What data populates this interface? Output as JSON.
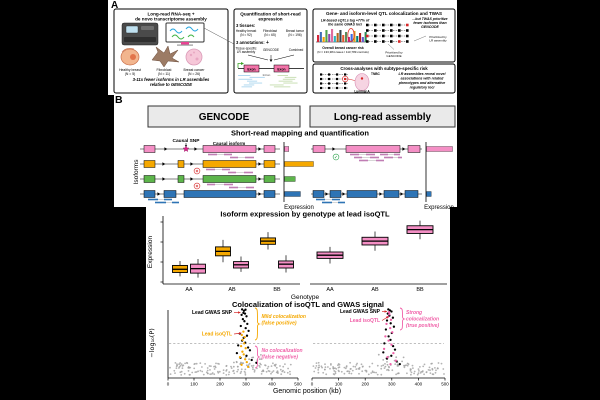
{
  "panel_a": {
    "label": "A",
    "box1": {
      "title1": "Long-read RNA-seq +",
      "title2": "de novo transcriptome assembly",
      "tissues": [
        {
          "name": "Healthy breast",
          "n": "(N = 5)"
        },
        {
          "name": "Fibroblast",
          "n": "(N = 11)"
        },
        {
          "name": "Breast cancer",
          "n": "(N = 26)"
        }
      ],
      "note1": "3-11x fewer isoforms in LR assemblies",
      "note2": "relative to GENCODE"
    },
    "box2": {
      "title1": "Quantification of short-read",
      "title2": "expression",
      "tissues_label": "3 tissues:",
      "tissues": [
        {
          "name": "Healthy breast",
          "n": "(N = 92)"
        },
        {
          "name": "Fibroblast",
          "n": "(N = 65)"
        },
        {
          "name": "Breast tumor",
          "n": "(N = 196)"
        }
      ],
      "annotations_label": "3 annotations:",
      "plus": "+",
      "ann1a": "Tissue-specific",
      "ann1b": "LR assembly",
      "ann2": "GENCODE",
      "ann3": "Combined",
      "exon": "Exon",
      "intron": "Intron"
    },
    "box3": {
      "title": "Gene- and isoform-level QTL colocalization and TWAS",
      "note_l1": "LR-based eQTLs tag +77% of",
      "note_l2": "the same GWAS loci",
      "risk1": "Overall breast cancer risk",
      "risk2": "(N = 133,384 cases / 113,789 controls)",
      "note_r1": "...but TWAS prioritize",
      "note_r2": "fewer isoforms than",
      "note_r3": "GENCODE",
      "leg_lr1": "Prioritized by",
      "leg_lr2": "LR assembly",
      "leg_gc1": "Prioritized by",
      "leg_gc2": "GENCODE",
      "ideogram": {
        "heights": [
          7,
          10,
          5,
          12,
          8,
          13,
          6,
          9,
          12,
          7,
          10,
          5,
          8,
          11,
          6,
          9,
          5,
          10
        ],
        "colors": [
          "#D62839",
          "#3B6EB5",
          "#F2A104",
          "#4FA34F",
          "#8E44AD",
          "#E06C9F",
          "#2BB3C0",
          "#B5651D",
          "#36454F",
          "#E4572E",
          "#5B8C5A",
          "#C71585",
          "#4169E1",
          "#DAA520",
          "#008080",
          "#B22222",
          "#6A5ACD",
          "#2E8B57"
        ]
      }
    },
    "box4": {
      "title": "Cross-analyses with subtype-specific risk",
      "tnbc": "TNBC",
      "luminal": "Luminal A",
      "note1": "LR assemblies reveal novel",
      "note2": "associations with related",
      "note3": "phenotypes and alternative",
      "note4": "regulatory loci"
    }
  },
  "panel_b": {
    "label": "B",
    "header_left": "GENCODE",
    "header_right": "Long-read assembly",
    "s1_title": "Short-read mapping and quantification",
    "causal_snp": "Causal SNP",
    "causal_isoform": "Causal isoform",
    "isoforms": "Isoforms",
    "expression": "Expression",
    "s2_title": "Isoform expression by genotype at lead isoQTL",
    "genotype": "Genotype",
    "s3_title": "Colocalization of isoQTL and GWAS signal",
    "neglog": "−log₁₀(P)",
    "xpos": "Genomic position (kb)",
    "ann": {
      "lead_gwas": "Lead GWAS SNP",
      "lead_isoqtl": "Lead isoQTL",
      "mild1": "Mild colocalization",
      "mild2": "(false positive)",
      "none1": "No colocalization",
      "none2": "(false negative)",
      "strong1": "Strong",
      "strong2": "colocalization",
      "strong3": "(true positive)"
    }
  },
  "colors": {
    "pink": "#F48FC5",
    "pink_dark": "#B4638F",
    "orange": "#F5A800",
    "green": "#5DB54B",
    "blue": "#2E74B5",
    "read_pink": "#C07DB4",
    "read_blue": "#2E74B5",
    "gray_pt": "#A0A0A0",
    "red": "#D62728",
    "pink_text": "#F060A8",
    "header_bg": "#EAEAEA",
    "light_blue_reads": "#A9D4EE",
    "light_green_reads": "#C4DCAE"
  },
  "chart_data": [
    {
      "type": "bar",
      "name": "short-read expression by isoform",
      "xlabel": "Expression",
      "panels": [
        {
          "annotation": "GENCODE",
          "categories": [
            "pink (causal) isoform",
            "orange isoform",
            "green isoform",
            "blue isoform"
          ],
          "colors": [
            "#F48FC5",
            "#F5A800",
            "#5DB54B",
            "#2E74B5"
          ],
          "values": [
            0.15,
            1.0,
            0.37,
            0.55
          ]
        },
        {
          "annotation": "Long-read assembly",
          "categories": [
            "pink (causal) isoform",
            "blue isoform"
          ],
          "colors": [
            "#F48FC5",
            "#2E74B5"
          ],
          "values": [
            1.0,
            0.18
          ]
        }
      ]
    },
    {
      "type": "boxplot",
      "title": "Isoform expression by genotype at lead isoQTL",
      "ylabel": "Expression",
      "xlabel": "Genotype",
      "genotypes": [
        "AA",
        "AB",
        "BB"
      ],
      "units": "arbitrary expression units (0-10)",
      "panels": [
        {
          "annotation": "GENCODE",
          "series": [
            {
              "name": "orange isoform",
              "color": "#F5A800",
              "boxes": [
                [
                  1.2,
                  1.8,
                  2.3,
                  2.9,
                  3.6
                ],
                [
                  3.4,
                  4.4,
                  5.1,
                  5.8,
                  6.9
                ],
                [
                  5.4,
                  6.2,
                  6.7,
                  7.2,
                  8.1
                ]
              ]
            },
            {
              "name": "pink isoform",
              "color": "#F48FC5",
              "boxes": [
                [
                  1.0,
                  1.7,
                  2.4,
                  3.1,
                  3.9
                ],
                [
                  1.9,
                  2.5,
                  3.0,
                  3.5,
                  4.3
                ],
                [
                  1.8,
                  2.5,
                  3.1,
                  3.6,
                  4.5
                ]
              ]
            }
          ]
        },
        {
          "annotation": "Long-read assembly",
          "series": [
            {
              "name": "pink isoform",
              "color": "#F48FC5",
              "boxes": [
                [
                  3.2,
                  4.0,
                  4.5,
                  5.0,
                  5.8
                ],
                [
                  5.2,
                  6.1,
                  6.7,
                  7.3,
                  8.2
                ],
                [
                  7.0,
                  7.9,
                  8.5,
                  9.1,
                  9.9
                ]
              ]
            }
          ]
        }
      ]
    },
    {
      "type": "scatter",
      "title": "Colocalization of isoQTL and GWAS signal",
      "xlabel": "Genomic position (kb)",
      "ylabel": "-log10(P)",
      "xlim": [
        0,
        500
      ],
      "xticks": [
        0,
        100,
        200,
        300,
        400,
        500
      ],
      "threshold": 5,
      "panels": [
        {
          "annotation": "GENCODE",
          "isoqtl_color": "#F5A800",
          "gwas": [
            [
              285,
              9.9
            ],
            [
              292,
              9.7
            ],
            [
              298,
              9.85
            ],
            [
              290,
              9.4
            ],
            [
              296,
              9.3
            ],
            [
              283,
              9.1
            ],
            [
              302,
              8.9
            ],
            [
              288,
              8.5
            ],
            [
              294,
              8.2
            ],
            [
              305,
              7.8
            ],
            [
              280,
              7.5
            ],
            [
              299,
              7.2
            ],
            [
              310,
              6.8
            ],
            [
              276,
              6.4
            ],
            [
              304,
              6.1
            ],
            [
              291,
              5.8
            ],
            [
              285,
              5.4
            ],
            [
              297,
              5.1
            ],
            [
              270,
              4.7
            ],
            [
              308,
              4.4
            ],
            [
              315,
              4.0
            ],
            [
              265,
              3.6
            ],
            [
              302,
              3.2
            ],
            [
              279,
              2.9
            ],
            [
              322,
              2.6
            ],
            [
              340,
              2.2
            ]
          ],
          "isoqtl": [
            [
              290,
              6.7
            ],
            [
              284,
              6.2
            ],
            [
              295,
              5.9
            ],
            [
              287,
              5.5
            ],
            [
              293,
              5.0
            ],
            [
              281,
              4.6
            ],
            [
              299,
              4.3
            ],
            [
              286,
              3.8
            ],
            [
              291,
              3.4
            ],
            [
              277,
              3.0
            ],
            [
              297,
              2.7
            ],
            [
              303,
              2.3
            ],
            [
              283,
              1.9
            ],
            [
              308,
              1.6
            ]
          ]
        },
        {
          "annotation": "Long-read assembly",
          "isoqtl_color": "#F060A8",
          "gwas": [
            [
              287,
              9.9
            ],
            [
              293,
              9.75
            ],
            [
              299,
              9.6
            ],
            [
              285,
              9.3
            ],
            [
              291,
              9.0
            ],
            [
              304,
              8.7
            ],
            [
              282,
              8.3
            ],
            [
              296,
              7.9
            ],
            [
              308,
              7.4
            ],
            [
              278,
              7.0
            ],
            [
              300,
              6.5
            ],
            [
              288,
              6.0
            ],
            [
              295,
              5.5
            ],
            [
              272,
              5.0
            ],
            [
              305,
              4.6
            ],
            [
              312,
              4.1
            ],
            [
              268,
              3.7
            ],
            [
              298,
              3.2
            ],
            [
              282,
              2.8
            ],
            [
              318,
              2.4
            ],
            [
              330,
              2.0
            ]
          ],
          "isoqtl": [
            [
              289,
              9.5
            ],
            [
              291,
              9.2
            ],
            [
              285,
              8.8
            ],
            [
              297,
              8.4
            ],
            [
              280,
              7.8
            ],
            [
              294,
              7.2
            ],
            [
              302,
              6.6
            ],
            [
              276,
              6.0
            ],
            [
              288,
              5.4
            ],
            [
              299,
              4.8
            ],
            [
              271,
              4.2
            ],
            [
              306,
              3.6
            ],
            [
              284,
              3.0
            ],
            [
              315,
              2.5
            ],
            [
              295,
              2.0
            ]
          ]
        }
      ],
      "noise": {
        "count": 150,
        "y_range": [
          0.45,
          2.2
        ]
      }
    }
  ]
}
